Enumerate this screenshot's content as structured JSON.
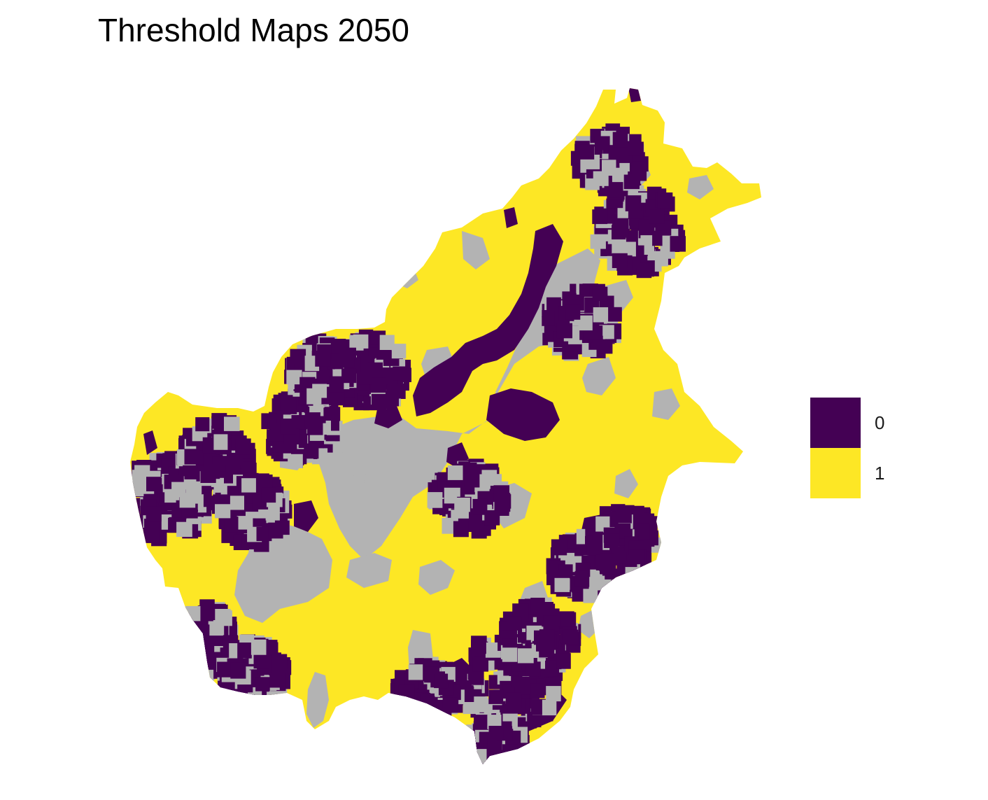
{
  "title": "Threshold Maps 2050",
  "colors": {
    "zero": "#440154",
    "one": "#fde725",
    "nodata": "#b3b3b3",
    "background": "#ffffff"
  },
  "legend": {
    "items": [
      {
        "label": "0",
        "color": "#440154"
      },
      {
        "label": "1",
        "color": "#fde725"
      }
    ]
  }
}
